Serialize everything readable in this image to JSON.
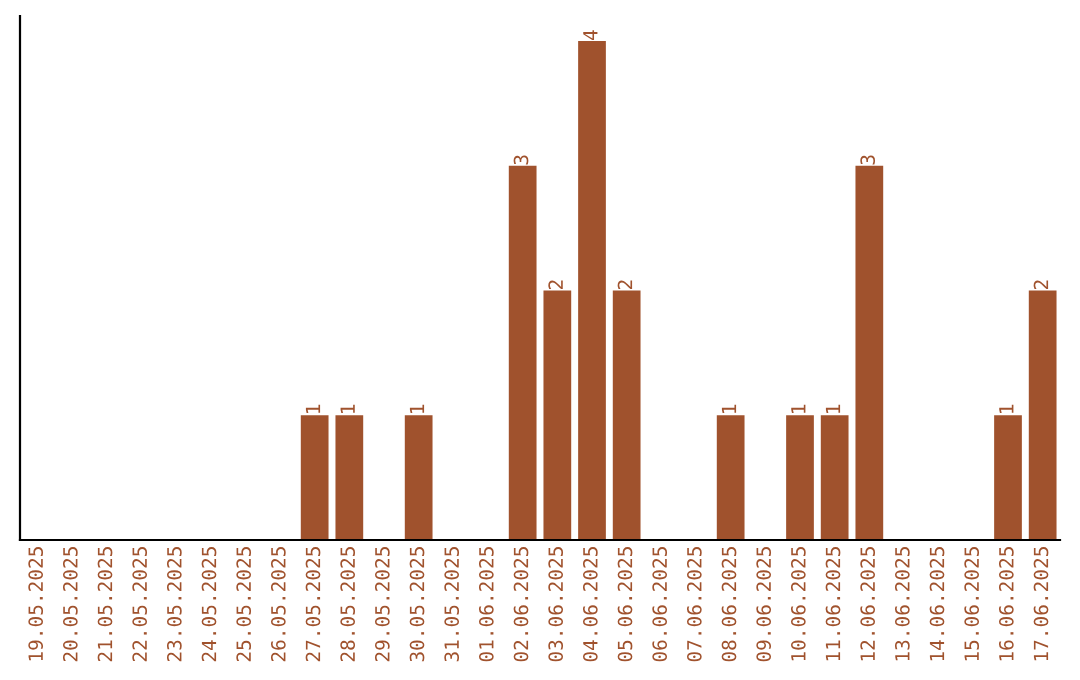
{
  "chart_data": {
    "type": "bar",
    "categories": [
      "19.05.2025",
      "20.05.2025",
      "21.05.2025",
      "22.05.2025",
      "23.05.2025",
      "24.05.2025",
      "25.05.2025",
      "26.05.2025",
      "27.05.2025",
      "28.05.2025",
      "29.05.2025",
      "30.05.2025",
      "31.05.2025",
      "01.06.2025",
      "02.06.2025",
      "03.06.2025",
      "04.06.2025",
      "05.06.2025",
      "06.06.2025",
      "07.06.2025",
      "08.06.2025",
      "09.06.2025",
      "10.06.2025",
      "11.06.2025",
      "12.06.2025",
      "13.06.2025",
      "14.06.2025",
      "15.06.2025",
      "16.06.2025",
      "17.06.2025"
    ],
    "values": [
      0,
      0,
      0,
      0,
      0,
      0,
      0,
      0,
      1,
      1,
      0,
      1,
      0,
      0,
      3,
      2,
      4,
      2,
      0,
      0,
      1,
      0,
      1,
      1,
      3,
      0,
      0,
      0,
      1,
      2
    ],
    "value_labels": [
      null,
      null,
      null,
      null,
      null,
      null,
      null,
      null,
      "1",
      "1",
      null,
      "1",
      null,
      null,
      "3",
      "2",
      "4",
      "2",
      null,
      null,
      "1",
      null,
      "1",
      "1",
      "3",
      null,
      null,
      null,
      "1",
      "2"
    ],
    "color": "#a0522d",
    "tick_labels": "x",
    "grid": false,
    "legend": false
  }
}
